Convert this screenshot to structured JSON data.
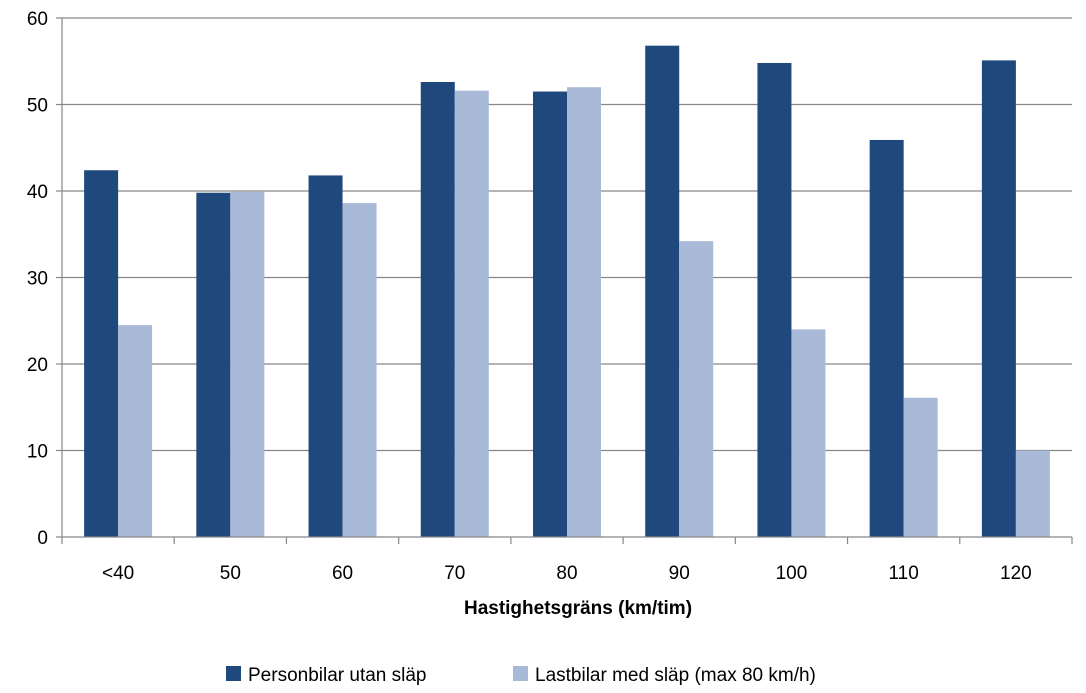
{
  "chart_data": {
    "type": "bar",
    "title": "",
    "xlabel": "Hastighetsgräns (km/tim)",
    "ylabel": "",
    "categories": [
      "<40",
      "50",
      "60",
      "70",
      "80",
      "90",
      "100",
      "110",
      "120"
    ],
    "ylim": [
      0,
      60
    ],
    "yticks": [
      "0",
      "10",
      "20",
      "30",
      "40",
      "50",
      "60"
    ],
    "grid": "horizontal",
    "legend_position": "bottom",
    "series": [
      {
        "name": "Personbilar utan släp",
        "color": "#1f497d",
        "values": [
          42.4,
          39.8,
          41.8,
          52.6,
          51.5,
          56.8,
          54.8,
          45.9,
          55.1
        ]
      },
      {
        "name": "Lastbilar med släp (max 80 km/h)",
        "color": "#a9b9d8",
        "values": [
          24.5,
          39.9,
          38.6,
          51.6,
          52.0,
          34.2,
          24.0,
          16.1,
          10.0
        ]
      }
    ]
  }
}
